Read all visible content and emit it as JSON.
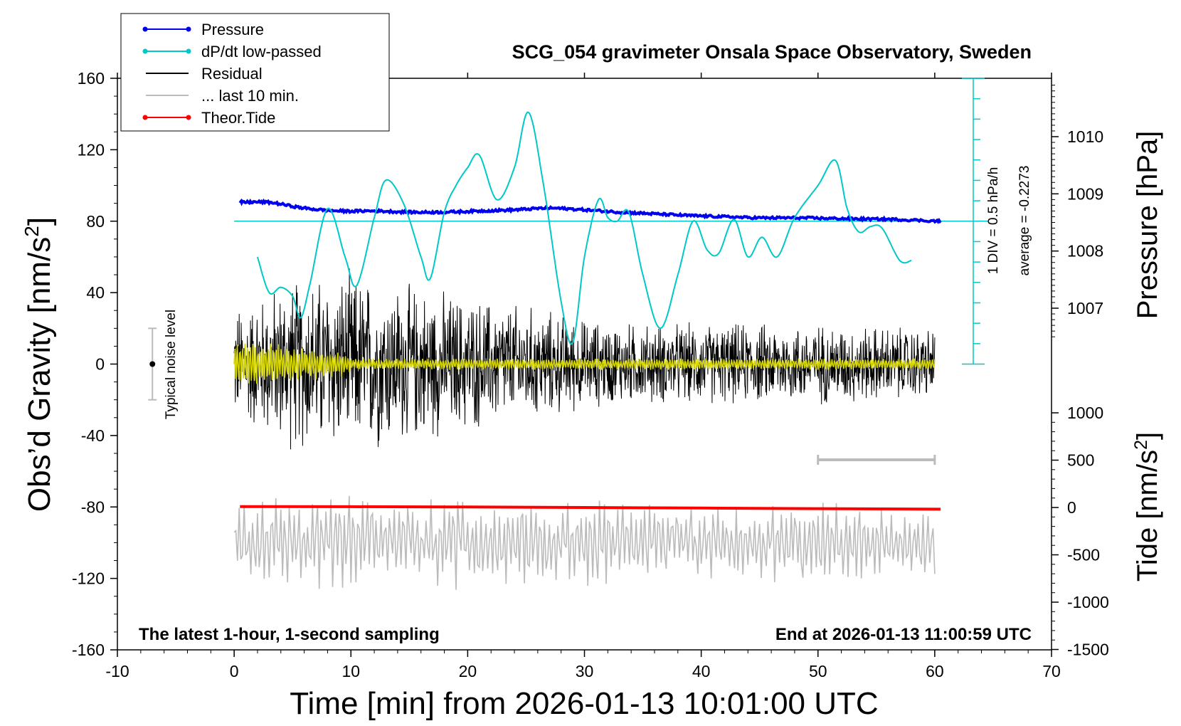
{
  "chart_data": {
    "type": "line",
    "title": "SCG_054 gravimeter Onsala Space Observatory, Sweden",
    "xlabel": "Time [min] from 2026-01-13 10:01:00 UTC",
    "ylabel_prefix": "Obs’d Gravity [nm/s",
    "ylabel_sup": "2",
    "ylabel_suffix": "]",
    "y2label": "Pressure [hPa]",
    "y3label_prefix": "Tide [nm/s",
    "y3label_sup": "2",
    "y3label_suffix": "]",
    "xlim": [
      -10,
      70
    ],
    "ylim": [
      -160,
      160
    ],
    "pressure_ylim": [
      1006.0,
      1011.0
    ],
    "tide_ylim": [
      -1500,
      1000
    ],
    "x_ticks": [
      "-10",
      "0",
      "10",
      "20",
      "30",
      "40",
      "50",
      "60",
      "70"
    ],
    "y_ticks": [
      "-160",
      "-120",
      "-80",
      "-40",
      "0",
      "40",
      "80",
      "120",
      "160"
    ],
    "pressure_ticks": [
      "1007",
      "1008",
      "1009",
      "1010"
    ],
    "tide_ticks": [
      "-1500",
      "-1000",
      "-500",
      "0",
      "500",
      "1000"
    ],
    "grid": false,
    "legend_position": "top-left",
    "legend": [
      {
        "label": "Pressure",
        "color": "#0000ee",
        "marker": true
      },
      {
        "label": "dP/dt low-passed",
        "color": "#00c8c8",
        "marker": true
      },
      {
        "label": "Residual",
        "color": "#000000",
        "marker": false
      },
      {
        "label": "... last 10 min.",
        "color": "#bbbbbb",
        "marker": false
      },
      {
        "label": "Theor.Tide",
        "color": "#ff0000",
        "marker": true
      }
    ],
    "annotations": {
      "bottom_left": "The latest 1-hour, 1-second sampling",
      "bottom_right": "End at 2026-01-13 11:00:59 UTC",
      "noise_label": "Typical noise level",
      "dpdt_scale": "1 DIV = 0.5 hPa/h",
      "dpdt_average": "average = -0.2273"
    },
    "series": [
      {
        "name": "Pressure",
        "axis": "pressure",
        "color": "#0000ee",
        "x": [
          0.5,
          3,
          6,
          9,
          12,
          15,
          18,
          21,
          24,
          27,
          30,
          33,
          36,
          39,
          42,
          45,
          48,
          51,
          54,
          57,
          60.5
        ],
        "y": [
          1008.85,
          1008.85,
          1008.75,
          1008.7,
          1008.7,
          1008.68,
          1008.68,
          1008.7,
          1008.72,
          1008.75,
          1008.72,
          1008.68,
          1008.65,
          1008.62,
          1008.6,
          1008.58,
          1008.58,
          1008.57,
          1008.56,
          1008.55,
          1008.52
        ]
      },
      {
        "name": "dP/dt low-passed",
        "axis": "gravity",
        "color": "#00c8c8",
        "x": [
          2,
          3,
          4,
          5,
          5.7,
          6.5,
          8,
          9.5,
          10.5,
          12,
          13,
          14.5,
          16,
          16.8,
          18,
          19,
          20,
          21,
          22.5,
          24,
          25.2,
          26.5,
          28,
          29,
          30,
          31.2,
          32,
          32.8,
          33.8,
          35,
          36.5,
          38,
          39.3,
          40.5,
          41.5,
          42.8,
          44,
          45.2,
          46.5,
          48,
          50,
          51.5,
          52.5,
          53.5,
          54.5,
          55.5,
          57,
          58
        ],
        "y": [
          60,
          40,
          43,
          38,
          26,
          45,
          87,
          60,
          44,
          82,
          103,
          90,
          60,
          48,
          85,
          100,
          110,
          117,
          92,
          110,
          141,
          100,
          35,
          12,
          60,
          92,
          82,
          80,
          85,
          50,
          20,
          50,
          80,
          64,
          62,
          81,
          60,
          71,
          60,
          82,
          100,
          114,
          87,
          74,
          77,
          76,
          58,
          58
        ]
      },
      {
        "name": "Theor.Tide",
        "axis": "tide",
        "color": "#ff0000",
        "x": [
          0.5,
          10,
          20,
          30,
          40,
          50,
          60.5
        ],
        "y": [
          10,
          8,
          5,
          0,
          -6,
          -12,
          -18
        ]
      }
    ],
    "residual_envelope": {
      "x": [
        0,
        5,
        10,
        15,
        20,
        25,
        30,
        35,
        40,
        45,
        50,
        55,
        60
      ],
      "amplitude": [
        25,
        38,
        40,
        35,
        30,
        26,
        20,
        18,
        18,
        18,
        18,
        17,
        16
      ]
    },
    "last10_envelope": {
      "x": [
        0,
        10,
        20,
        30,
        40,
        50,
        60
      ],
      "amplitude": [
        20,
        24,
        22,
        22,
        18,
        20,
        16
      ]
    },
    "last10_scale_bar": [
      50,
      60
    ],
    "noise_bar": {
      "x": -7,
      "center": 0,
      "half_range": 20
    }
  }
}
